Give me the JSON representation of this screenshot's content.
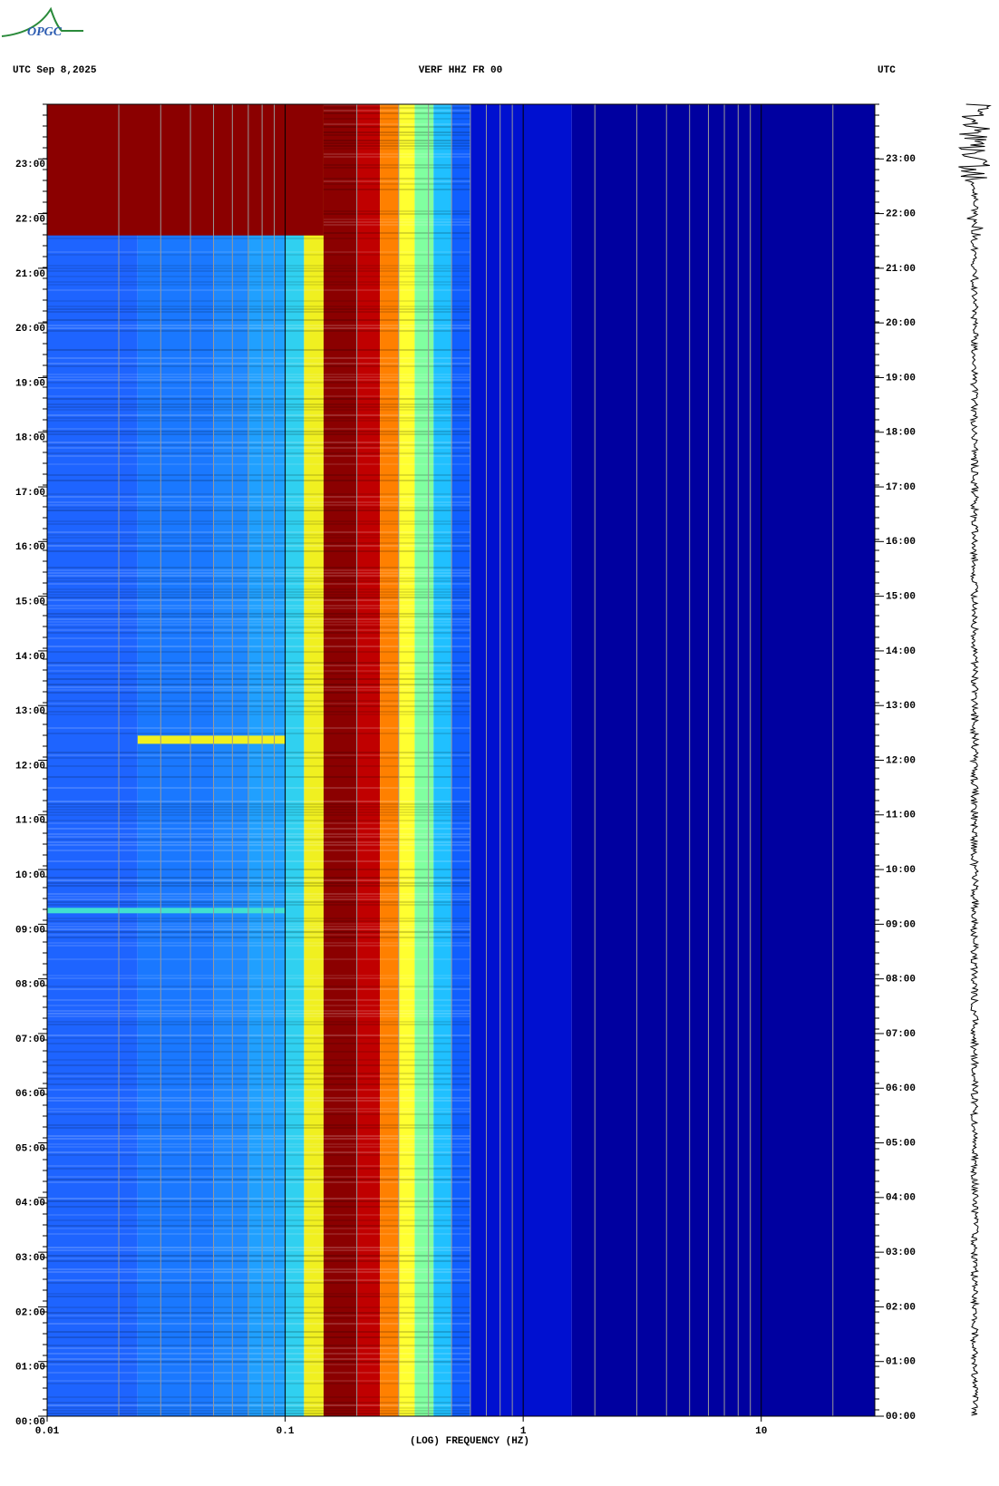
{
  "logo": "OPGC",
  "chart_data": {
    "type": "spectrogram",
    "title": "VERF HHZ FR 00",
    "date_label": "UTC  Sep 8,2025",
    "right_label": "UTC",
    "x_label": "(LOG) FREQUENCY (HZ)",
    "x_log": true,
    "xlim": [
      0.01,
      30
    ],
    "xticks": [
      {
        "value": 0.01,
        "label": "0.01"
      },
      {
        "value": 0.1,
        "label": "0.1"
      },
      1,
      10
    ],
    "xminor": [
      0.02,
      0.03,
      0.04,
      0.05,
      0.06,
      0.07,
      0.08,
      0.09,
      0.2,
      0.3,
      0.4,
      0.5,
      0.6,
      0.7,
      0.8,
      0.9,
      2,
      3,
      4,
      5,
      6,
      7,
      8,
      9,
      20
    ],
    "ylim": [
      0,
      24
    ],
    "yticks": [
      {
        "value": 0,
        "label": "00:00"
      },
      {
        "value": 1,
        "label": "01:00"
      },
      {
        "value": 2,
        "label": "02:00"
      },
      {
        "value": 3,
        "label": "03:00"
      },
      {
        "value": 4,
        "label": "04:00"
      },
      {
        "value": 5,
        "label": "05:00"
      },
      {
        "value": 6,
        "label": "06:00"
      },
      {
        "value": 7,
        "label": "07:00"
      },
      {
        "value": 8,
        "label": "08:00"
      },
      {
        "value": 9,
        "label": "09:00"
      },
      {
        "value": 10,
        "label": "10:00"
      },
      {
        "value": 11,
        "label": "11:00"
      },
      {
        "value": 12,
        "label": "12:00"
      },
      {
        "value": 13,
        "label": "13:00"
      },
      {
        "value": 14,
        "label": "14:00"
      },
      {
        "value": 15,
        "label": "15:00"
      },
      {
        "value": 16,
        "label": "16:00"
      },
      {
        "value": 17,
        "label": "17:00"
      },
      {
        "value": 18,
        "label": "18:00"
      },
      {
        "value": 19,
        "label": "19:00"
      },
      {
        "value": 20,
        "label": "20:00"
      },
      {
        "value": 21,
        "label": "21:00"
      },
      {
        "value": 22,
        "label": "22:00"
      },
      {
        "value": 23,
        "label": "23:00"
      }
    ],
    "bands": [
      {
        "from": 0.01,
        "to": 0.024,
        "color": "#1e64ff"
      },
      {
        "from": 0.024,
        "to": 0.05,
        "color": "#1a78ff"
      },
      {
        "from": 0.05,
        "to": 0.07,
        "color": "#1e88ff"
      },
      {
        "from": 0.07,
        "to": 0.1,
        "color": "#20a0ff"
      },
      {
        "from": 0.1,
        "to": 0.12,
        "color": "#30d0f0"
      },
      {
        "from": 0.12,
        "to": 0.145,
        "color": "#f0f020"
      },
      {
        "from": 0.145,
        "to": 0.2,
        "color": "#8b0000"
      },
      {
        "from": 0.2,
        "to": 0.25,
        "color": "#c00000"
      },
      {
        "from": 0.25,
        "to": 0.3,
        "color": "#ff8000"
      },
      {
        "from": 0.3,
        "to": 0.35,
        "color": "#ffff30"
      },
      {
        "from": 0.35,
        "to": 0.42,
        "color": "#80ffa0"
      },
      {
        "from": 0.42,
        "to": 0.5,
        "color": "#20c0ff"
      },
      {
        "from": 0.5,
        "to": 0.6,
        "color": "#1060ff"
      },
      {
        "from": 0.6,
        "to": 1.6,
        "color": "#0010d0"
      },
      {
        "from": 1.6,
        "to": 30,
        "color": "#0000a0"
      }
    ],
    "events": [
      {
        "from": 0.01,
        "to": 0.145,
        "start": 21.6,
        "end": 24,
        "color": "#8b0000"
      },
      {
        "from": 0.01,
        "to": 0.1,
        "start": 9.2,
        "end": 9.3,
        "color": "#40e0d0"
      },
      {
        "from": 0.024,
        "to": 0.1,
        "start": 12.3,
        "end": 12.45,
        "color": "#f0f020"
      }
    ]
  }
}
